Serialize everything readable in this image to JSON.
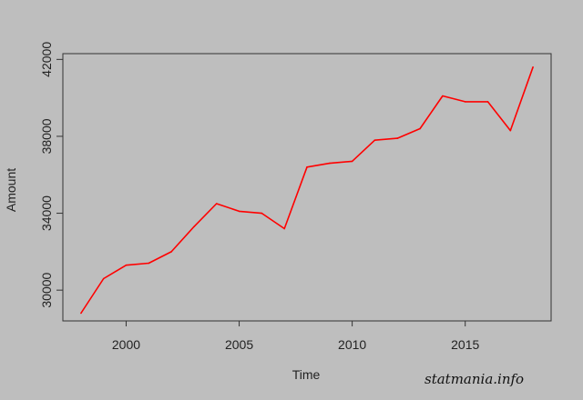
{
  "chart_data": {
    "type": "line",
    "xlabel": "Time",
    "ylabel": "Amount",
    "xlim": [
      1997.2,
      2018.8
    ],
    "ylim": [
      28400,
      42300
    ],
    "x_ticks": [
      2000,
      2005,
      2010,
      2015
    ],
    "x_tick_labels": [
      "2000",
      "2005",
      "2010",
      "2015"
    ],
    "y_ticks": [
      30000,
      34000,
      38000,
      42000
    ],
    "y_tick_labels": [
      "30000",
      "34000",
      "38000",
      "42000"
    ],
    "grid": false,
    "series": [
      {
        "color": "#ff0000",
        "x": [
          1998,
          1999,
          2000,
          2001,
          2002,
          2003,
          2004,
          2005,
          2006,
          2007,
          2008,
          2009,
          2010,
          2011,
          2012,
          2013,
          2014,
          2015,
          2016,
          2017,
          2018
        ],
        "y": [
          28800,
          30600,
          31300,
          31400,
          32000,
          33300,
          34500,
          34100,
          34000,
          33200,
          36400,
          36600,
          36700,
          37800,
          37900,
          38400,
          40100,
          39800,
          39800,
          38300,
          41600
        ]
      }
    ]
  },
  "watermark": "statmania.info"
}
